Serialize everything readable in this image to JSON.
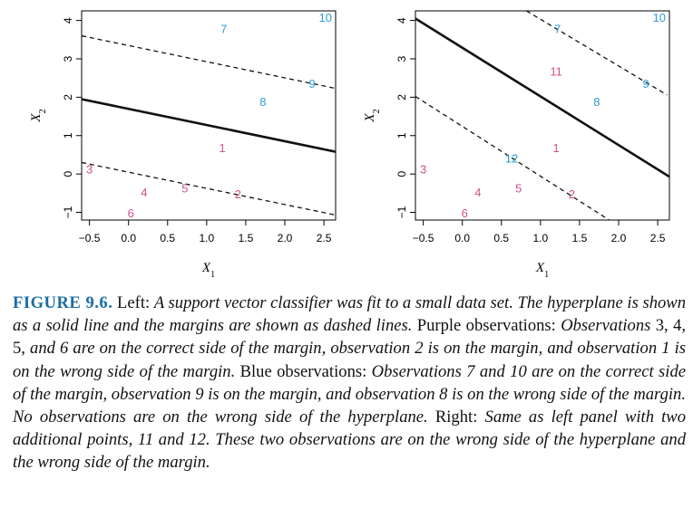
{
  "figure": {
    "label": "FIGURE 9.6.",
    "caption_parts": [
      " Left: ",
      "A support vector classifier was fit to a small data set. The hyperplane is shown as a solid line and the margins are shown as dashed lines.",
      " Purple observations: ",
      "Observations ",
      "3, 4, 5,",
      " and 6 are on the correct side of the margin, observation 2 is on the margin, and observation 1 is on the wrong side of the margin.",
      " Blue observations: ",
      "Observations 7 and 10 are on the correct side of the margin, observation 9 is on the margin, and observation 8 is on the wrong side of the margin. No observations are on the wrong side of the hyperplane.",
      " Right: ",
      "Same as left panel with two additional points, 11 and 12. These two observations are on the wrong side of the hyperplane and the wrong side of the margin."
    ]
  },
  "colors": {
    "purple": "#d0508a",
    "blue": "#2f9bd3",
    "line": "#111111"
  },
  "chart_data": [
    {
      "type": "scatter",
      "panel": "left",
      "xlabel": "X1",
      "ylabel": "X2",
      "xlim": [
        -0.6,
        2.65
      ],
      "ylim": [
        -1.2,
        4.25
      ],
      "xticks": [
        -0.5,
        0.0,
        0.5,
        1.0,
        1.5,
        2.0,
        2.5
      ],
      "xtick_labels": [
        "−0.5",
        "0.0",
        "0.5",
        "1.0",
        "1.5",
        "2.0",
        "2.5"
      ],
      "yticks": [
        -1,
        0,
        1,
        2,
        3,
        4
      ],
      "ytick_labels": [
        "−1",
        "0",
        "1",
        "2",
        "3",
        "4"
      ],
      "points": [
        {
          "label": "1",
          "x": 1.2,
          "y": 0.65,
          "class": "purple"
        },
        {
          "label": "2",
          "x": 1.4,
          "y": -0.55,
          "class": "purple"
        },
        {
          "label": "3",
          "x": -0.5,
          "y": 0.1,
          "class": "purple"
        },
        {
          "label": "4",
          "x": 0.2,
          "y": -0.5,
          "class": "purple"
        },
        {
          "label": "5",
          "x": 0.72,
          "y": -0.4,
          "class": "purple"
        },
        {
          "label": "6",
          "x": 0.03,
          "y": -1.05,
          "class": "purple"
        },
        {
          "label": "7",
          "x": 1.22,
          "y": 3.75,
          "class": "blue"
        },
        {
          "label": "8",
          "x": 1.72,
          "y": 1.85,
          "class": "blue"
        },
        {
          "label": "9",
          "x": 2.35,
          "y": 2.33,
          "class": "blue"
        },
        {
          "label": "10",
          "x": 2.52,
          "y": 4.05,
          "class": "blue"
        }
      ],
      "lines": [
        {
          "style": "solid",
          "x": [
            -0.6,
            2.65
          ],
          "y": [
            1.95,
            0.58
          ]
        },
        {
          "style": "dashed",
          "x": [
            -0.6,
            2.65
          ],
          "y": [
            3.6,
            2.23
          ]
        },
        {
          "style": "dashed",
          "x": [
            -0.6,
            2.65
          ],
          "y": [
            0.3,
            -1.07
          ]
        }
      ]
    },
    {
      "type": "scatter",
      "panel": "right",
      "xlabel": "X1",
      "ylabel": "X2",
      "xlim": [
        -0.6,
        2.65
      ],
      "ylim": [
        -1.2,
        4.25
      ],
      "xticks": [
        -0.5,
        0.0,
        0.5,
        1.0,
        1.5,
        2.0,
        2.5
      ],
      "xtick_labels": [
        "−0.5",
        "0.0",
        "0.5",
        "1.0",
        "1.5",
        "2.0",
        "2.5"
      ],
      "yticks": [
        -1,
        0,
        1,
        2,
        3,
        4
      ],
      "ytick_labels": [
        "−1",
        "0",
        "1",
        "2",
        "3",
        "4"
      ],
      "points": [
        {
          "label": "1",
          "x": 1.2,
          "y": 0.65,
          "class": "purple"
        },
        {
          "label": "2",
          "x": 1.4,
          "y": -0.55,
          "class": "purple"
        },
        {
          "label": "3",
          "x": -0.5,
          "y": 0.1,
          "class": "purple"
        },
        {
          "label": "4",
          "x": 0.2,
          "y": -0.5,
          "class": "purple"
        },
        {
          "label": "5",
          "x": 0.72,
          "y": -0.4,
          "class": "purple"
        },
        {
          "label": "6",
          "x": 0.03,
          "y": -1.05,
          "class": "purple"
        },
        {
          "label": "7",
          "x": 1.22,
          "y": 3.75,
          "class": "blue"
        },
        {
          "label": "8",
          "x": 1.72,
          "y": 1.85,
          "class": "blue"
        },
        {
          "label": "9",
          "x": 2.35,
          "y": 2.33,
          "class": "blue"
        },
        {
          "label": "10",
          "x": 2.52,
          "y": 4.05,
          "class": "blue"
        },
        {
          "label": "11",
          "x": 1.2,
          "y": 2.65,
          "class": "purple"
        },
        {
          "label": "12",
          "x": 0.63,
          "y": 0.38,
          "class": "blue"
        }
      ],
      "lines": [
        {
          "style": "solid",
          "x": [
            -0.6,
            2.65
          ],
          "y": [
            4.05,
            -0.07
          ]
        },
        {
          "style": "dashed",
          "x": [
            0.82,
            2.62
          ],
          "y": [
            4.25,
            2.06
          ]
        },
        {
          "style": "dashed",
          "x": [
            -0.6,
            1.88
          ],
          "y": [
            2.02,
            -1.2
          ]
        }
      ]
    }
  ]
}
